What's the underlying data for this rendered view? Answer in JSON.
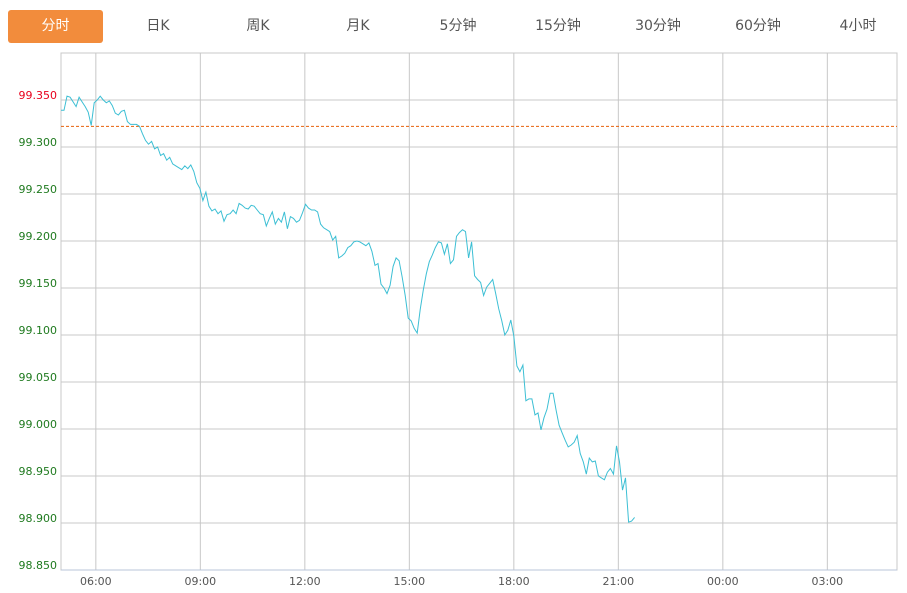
{
  "tabs": [
    {
      "label": "分时",
      "active": true
    },
    {
      "label": "日K",
      "active": false
    },
    {
      "label": "周K",
      "active": false
    },
    {
      "label": "月K",
      "active": false
    },
    {
      "label": "5分钟",
      "active": false
    },
    {
      "label": "15分钟",
      "active": false
    },
    {
      "label": "30分钟",
      "active": false
    },
    {
      "label": "60分钟",
      "active": false
    },
    {
      "label": "4小时",
      "active": false
    }
  ],
  "colors": {
    "accent": "#f28c3c",
    "line": "#3cbfd4",
    "reference": "#e8600a",
    "up_label": "#e8001c",
    "down_label": "#1f7a1f",
    "grid": "#c8c8c8"
  },
  "chart_data": {
    "type": "line",
    "title": "",
    "xlabel": "",
    "ylabel": "",
    "x_range": [
      "05:00",
      "05:00 (+1 day)"
    ],
    "x_ticks": [
      "06:00",
      "09:00",
      "12:00",
      "15:00",
      "18:00",
      "21:00",
      "00:00",
      "03:00"
    ],
    "ylim": [
      98.85,
      99.4
    ],
    "y_ticks": [
      "99.350",
      "99.300",
      "99.250",
      "99.200",
      "99.150",
      "99.100",
      "99.050",
      "99.000",
      "98.950",
      "98.900",
      "98.850"
    ],
    "reference_line": 99.322,
    "grid": true,
    "series_start": "05:00",
    "series_interval_minutes": 5,
    "values": [
      99.339,
      99.339,
      99.354,
      99.353,
      99.348,
      99.343,
      99.353,
      99.348,
      99.343,
      99.337,
      99.323,
      99.347,
      99.35,
      99.354,
      99.35,
      99.347,
      99.349,
      99.344,
      99.336,
      99.334,
      99.338,
      99.339,
      99.327,
      99.324,
      99.324,
      99.324,
      99.322,
      99.314,
      99.307,
      99.303,
      99.306,
      99.298,
      99.3,
      99.291,
      99.293,
      99.286,
      99.289,
      99.282,
      99.28,
      99.278,
      99.276,
      99.28,
      99.277,
      99.281,
      99.274,
      99.262,
      99.256,
      99.243,
      99.252,
      99.237,
      99.232,
      99.234,
      99.229,
      99.232,
      99.221,
      99.228,
      99.229,
      99.233,
      99.229,
      99.24,
      99.238,
      99.235,
      99.234,
      99.238,
      99.237,
      99.233,
      99.229,
      99.228,
      99.216,
      99.224,
      99.231,
      99.218,
      99.224,
      99.22,
      99.231,
      99.213,
      99.226,
      99.224,
      99.22,
      99.222,
      99.23,
      99.239,
      99.235,
      99.233,
      99.233,
      99.231,
      99.218,
      99.214,
      99.212,
      99.21,
      99.201,
      99.205,
      99.182,
      99.184,
      99.187,
      99.193,
      99.195,
      99.199,
      99.2,
      99.199,
      99.197,
      99.195,
      99.198,
      99.189,
      99.174,
      99.176,
      99.154,
      99.15,
      99.144,
      99.153,
      99.173,
      99.182,
      99.179,
      99.162,
      99.142,
      99.118,
      99.115,
      99.107,
      99.102,
      99.127,
      99.148,
      99.165,
      99.178,
      99.185,
      99.193,
      99.199,
      99.198,
      99.186,
      99.197,
      99.176,
      99.18,
      99.205,
      99.209,
      99.212,
      99.21,
      99.182,
      99.199,
      99.163,
      99.159,
      99.156,
      99.142,
      99.151,
      99.155,
      99.159,
      99.144,
      99.128,
      99.115,
      99.1,
      99.105,
      99.116,
      99.099,
      99.067,
      99.061,
      99.068,
      99.03,
      99.032,
      99.032,
      99.015,
      99.017,
      98.999,
      99.012,
      99.021,
      99.038,
      99.038,
      99.02,
      99.004,
      98.996,
      98.988,
      98.981,
      98.983,
      98.986,
      98.993,
      98.974,
      98.965,
      98.952,
      98.969,
      98.965,
      98.966,
      98.95,
      98.948,
      98.946,
      98.954,
      98.958,
      98.952,
      98.982,
      98.965,
      98.935,
      98.948,
      98.901,
      98.902,
      98.906
    ]
  }
}
